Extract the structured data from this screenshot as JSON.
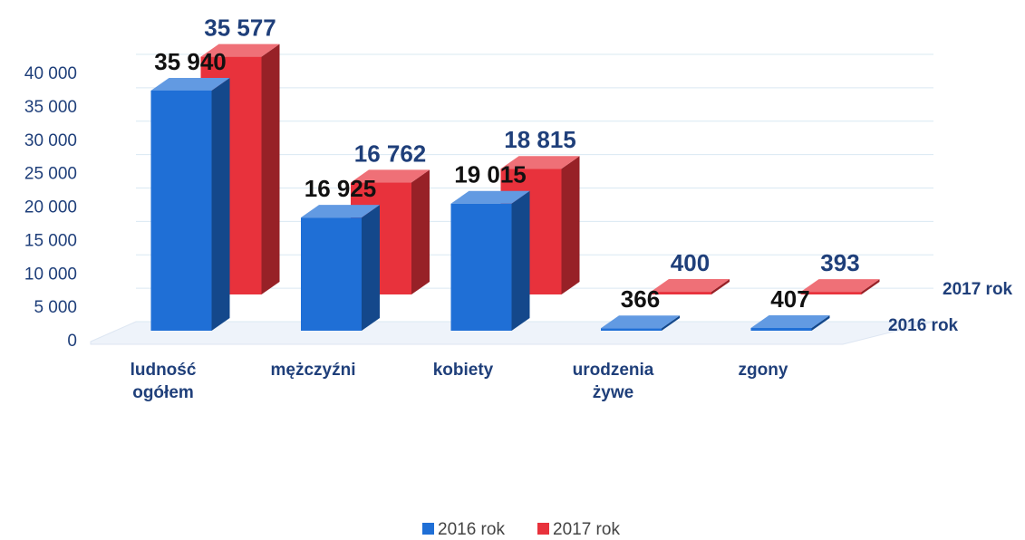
{
  "chart_data": {
    "type": "bar3d",
    "categories": [
      "ludność ogółem",
      "mężczyźni",
      "kobiety",
      "urodzenia żywe",
      "zgony"
    ],
    "series": [
      {
        "name": "2016 rok",
        "color": "#1f6fd6",
        "values": [
          35940,
          16925,
          19015,
          366,
          407
        ],
        "value_labels": [
          "35 940",
          "16 925",
          "19 015",
          "366",
          "407"
        ]
      },
      {
        "name": "2017 rok",
        "color": "#e8323c",
        "values": [
          35577,
          16762,
          18815,
          400,
          393
        ],
        "value_labels": [
          "35 577",
          "16 762",
          "18 815",
          "400",
          "393"
        ]
      }
    ],
    "ylim": [
      0,
      40000
    ],
    "yticks": [
      {
        "value": 0,
        "label": "0"
      },
      {
        "value": 5000,
        "label": "5 000"
      },
      {
        "value": 10000,
        "label": "10 000"
      },
      {
        "value": 15000,
        "label": "15 000"
      },
      {
        "value": 20000,
        "label": "20 000"
      },
      {
        "value": 25000,
        "label": "25 000"
      },
      {
        "value": 30000,
        "label": "30 000"
      },
      {
        "value": 35000,
        "label": "35 000"
      },
      {
        "value": 40000,
        "label": "40 000"
      }
    ],
    "grid": true,
    "legend": "bottom"
  }
}
